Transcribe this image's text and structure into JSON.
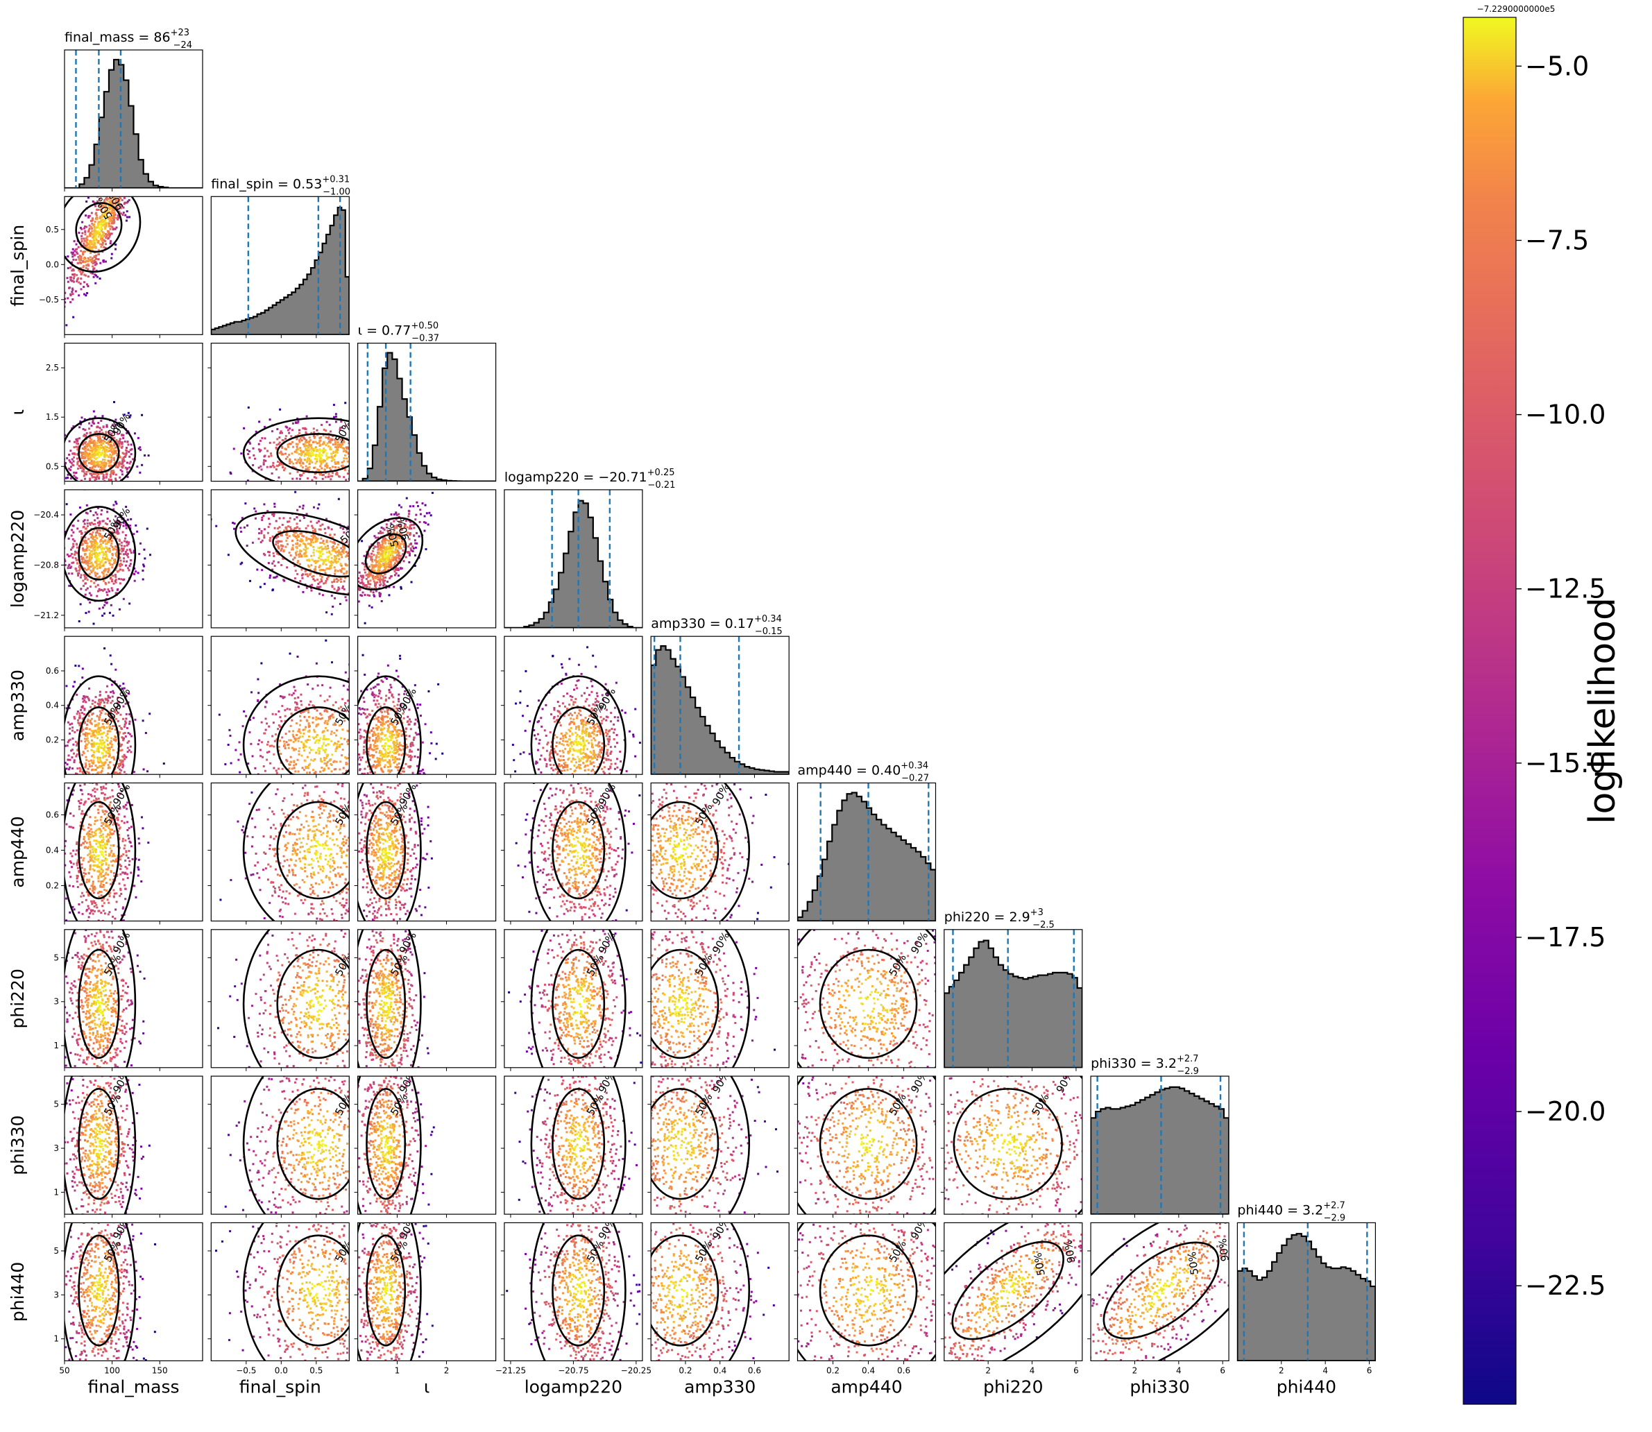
{
  "chart_data": {
    "type": "corner",
    "params": [
      {
        "name": "final_mass",
        "title_prefix": "final_mass = ",
        "median": "86",
        "plus": "+23",
        "minus": "−24",
        "q": [
          62,
          86,
          109
        ],
        "range": [
          50,
          195
        ],
        "ticks": [
          50,
          100,
          150
        ],
        "ticklabels": [
          "50",
          "100",
          "150"
        ],
        "axis_label": "final_mass",
        "hist": [
          0,
          0,
          0,
          0.03,
          0.08,
          0.18,
          0.34,
          0.55,
          0.75,
          0.92,
          1.0,
          0.96,
          0.84,
          0.64,
          0.42,
          0.22,
          0.11,
          0.05,
          0.02,
          0.01,
          0.005,
          0,
          0,
          0,
          0,
          0,
          0,
          0
        ]
      },
      {
        "name": "final_spin",
        "title_prefix": "final_spin = ",
        "median": "0.53",
        "plus": "+0.31",
        "minus": "−1.00",
        "q": [
          -0.47,
          0.53,
          0.84
        ],
        "range": [
          -1.0,
          0.97
        ],
        "ticks": [
          -0.5,
          0.0,
          0.5
        ],
        "ticklabels": [
          "−0.5",
          "0.0",
          "0.5"
        ],
        "axis_label": "final_spin",
        "hist": [
          0.04,
          0.05,
          0.06,
          0.07,
          0.08,
          0.09,
          0.1,
          0.1,
          0.11,
          0.12,
          0.13,
          0.14,
          0.16,
          0.17,
          0.19,
          0.21,
          0.23,
          0.25,
          0.27,
          0.29,
          0.31,
          0.33,
          0.36,
          0.39,
          0.43,
          0.47,
          0.52,
          0.58,
          0.64,
          0.71,
          0.78,
          0.85,
          0.93,
          0.99,
          0.97,
          0.45
        ]
      },
      {
        "name": "iota",
        "title_prefix": "ι = ",
        "median": "0.77",
        "plus": "+0.50",
        "minus": "−0.37",
        "q": [
          0.4,
          0.77,
          1.27
        ],
        "range": [
          0.2,
          3.0
        ],
        "ticks": [
          0.5,
          1.5,
          2.5
        ],
        "ticklabels": [
          "0.5",
          "1.5",
          "2.5"
        ],
        "xticks": [
          1,
          2
        ],
        "xticklabels": [
          "1",
          "2"
        ],
        "axis_label": "ι",
        "hist": [
          0,
          0.02,
          0.1,
          0.28,
          0.58,
          0.88,
          1.0,
          0.95,
          0.8,
          0.64,
          0.5,
          0.36,
          0.22,
          0.12,
          0.06,
          0.03,
          0.015,
          0.008,
          0.004,
          0.002,
          0.001,
          0,
          0,
          0,
          0,
          0,
          0,
          0
        ]
      },
      {
        "name": "logamp220",
        "title_prefix": "logamp220 = ",
        "median": "−20.71",
        "plus": "+0.25",
        "minus": "−0.21",
        "q": [
          -20.92,
          -20.71,
          -20.46
        ],
        "range": [
          -21.3,
          -20.2
        ],
        "ticks": [
          -21.2,
          -20.8,
          -20.4
        ],
        "ticklabels": [
          "−21.2",
          "−20.8",
          "−20.4"
        ],
        "xticks": [
          -21.25,
          -20.75,
          -20.25
        ],
        "xticklabels": [
          "−21.25",
          "−20.75",
          "−20.25"
        ],
        "axis_label": "logamp220",
        "hist": [
          0,
          0,
          0,
          0,
          0.01,
          0.02,
          0.04,
          0.07,
          0.12,
          0.2,
          0.3,
          0.43,
          0.58,
          0.75,
          0.9,
          0.99,
          0.97,
          0.86,
          0.7,
          0.52,
          0.36,
          0.22,
          0.12,
          0.06,
          0.03,
          0.01,
          0,
          0
        ]
      },
      {
        "name": "amp330",
        "title_prefix": "amp330 = ",
        "median": "0.17",
        "plus": "+0.34",
        "minus": "−0.15",
        "q": [
          0.02,
          0.17,
          0.51
        ],
        "range": [
          0,
          0.8
        ],
        "ticks": [
          0.2,
          0.4,
          0.6
        ],
        "ticklabels": [
          "0.2",
          "0.4",
          "0.6"
        ],
        "axis_label": "amp330",
        "hist": [
          0.85,
          0.97,
          1.0,
          0.97,
          0.9,
          0.84,
          0.76,
          0.68,
          0.6,
          0.52,
          0.45,
          0.38,
          0.32,
          0.26,
          0.21,
          0.17,
          0.13,
          0.1,
          0.08,
          0.06,
          0.05,
          0.04,
          0.035,
          0.03,
          0.025,
          0.02,
          0.02,
          0.02
        ]
      },
      {
        "name": "amp440",
        "title_prefix": "amp440 = ",
        "median": "0.40",
        "plus": "+0.34",
        "minus": "−0.27",
        "q": [
          0.13,
          0.4,
          0.74
        ],
        "range": [
          0,
          0.78
        ],
        "ticks": [
          0.2,
          0.4,
          0.6
        ],
        "ticklabels": [
          "0.2",
          "0.4",
          "0.6"
        ],
        "axis_label": "amp440",
        "hist": [
          0.03,
          0.08,
          0.15,
          0.24,
          0.35,
          0.48,
          0.62,
          0.75,
          0.86,
          0.94,
          0.99,
          1.0,
          0.97,
          0.93,
          0.88,
          0.83,
          0.79,
          0.75,
          0.72,
          0.69,
          0.66,
          0.63,
          0.6,
          0.57,
          0.54,
          0.5,
          0.45,
          0.4
        ]
      },
      {
        "name": "phi220",
        "title_prefix": "phi220 = ",
        "median": "2.9",
        "plus": "+3",
        "minus": "−2.5",
        "q": [
          0.4,
          2.9,
          5.9
        ],
        "range": [
          0,
          6.28
        ],
        "ticks": [
          1,
          3,
          5
        ],
        "ticklabels": [
          "1",
          "3",
          "5"
        ],
        "xticks": [
          2,
          4,
          6
        ],
        "xticklabels": [
          "2",
          "4",
          "6"
        ],
        "axis_label": "phi220",
        "hist": [
          0.58,
          0.63,
          0.68,
          0.74,
          0.8,
          0.86,
          0.93,
          0.98,
          0.99,
          0.93,
          0.86,
          0.8,
          0.76,
          0.73,
          0.71,
          0.7,
          0.69,
          0.7,
          0.71,
          0.72,
          0.72,
          0.73,
          0.74,
          0.74,
          0.74,
          0.73,
          0.7,
          0.62
        ]
      },
      {
        "name": "phi330",
        "title_prefix": "phi330 = ",
        "median": "3.2",
        "plus": "+2.7",
        "minus": "−2.9",
        "q": [
          0.3,
          3.2,
          5.9
        ],
        "range": [
          0,
          6.28
        ],
        "ticks": [
          1,
          3,
          5
        ],
        "ticklabels": [
          "1",
          "3",
          "5"
        ],
        "xticks": [
          2,
          4,
          6
        ],
        "xticklabels": [
          "2",
          "4",
          "6"
        ],
        "axis_label": "phi330",
        "hist": [
          0.75,
          0.8,
          0.82,
          0.83,
          0.82,
          0.82,
          0.83,
          0.84,
          0.85,
          0.87,
          0.89,
          0.91,
          0.93,
          0.95,
          0.97,
          0.98,
          0.99,
          0.99,
          0.98,
          0.96,
          0.94,
          0.92,
          0.9,
          0.88,
          0.86,
          0.84,
          0.82,
          0.75
        ]
      },
      {
        "name": "phi440",
        "title_prefix": "phi440 = ",
        "median": "3.2",
        "plus": "+2.7",
        "minus": "−2.9",
        "q": [
          0.3,
          3.2,
          5.9
        ],
        "range": [
          0,
          6.28
        ],
        "ticks": [
          1,
          3,
          5
        ],
        "ticklabels": [
          "1",
          "3",
          "5"
        ],
        "xticks": [
          2,
          4,
          6
        ],
        "xticklabels": [
          "2",
          "4",
          "6"
        ],
        "axis_label": "phi440",
        "hist": [
          0.7,
          0.72,
          0.7,
          0.66,
          0.63,
          0.65,
          0.7,
          0.77,
          0.84,
          0.9,
          0.95,
          0.98,
          0.99,
          0.97,
          0.93,
          0.87,
          0.81,
          0.76,
          0.73,
          0.72,
          0.72,
          0.73,
          0.72,
          0.7,
          0.67,
          0.64,
          0.62,
          0.58
        ]
      }
    ],
    "colorbar": {
      "label": "loglikelihood",
      "offset_text": "−7.2290000000e5",
      "range": [
        -24.2,
        -4.3
      ],
      "ticks": [
        -5.0,
        -7.5,
        -10.0,
        -12.5,
        -15.0,
        -17.5,
        -20.0,
        -22.5
      ],
      "ticklabels": [
        "−5.0",
        "−7.5",
        "−10.0",
        "−12.5",
        "−15.0",
        "−17.5",
        "−20.0",
        "−22.5"
      ],
      "colormap": "plasma"
    },
    "contour_levels": [
      "50%",
      "90%"
    ],
    "colors": {
      "hist_fill": "#7f7f7f",
      "quantile_line": "#1f77b4",
      "contour": "#000000"
    }
  }
}
